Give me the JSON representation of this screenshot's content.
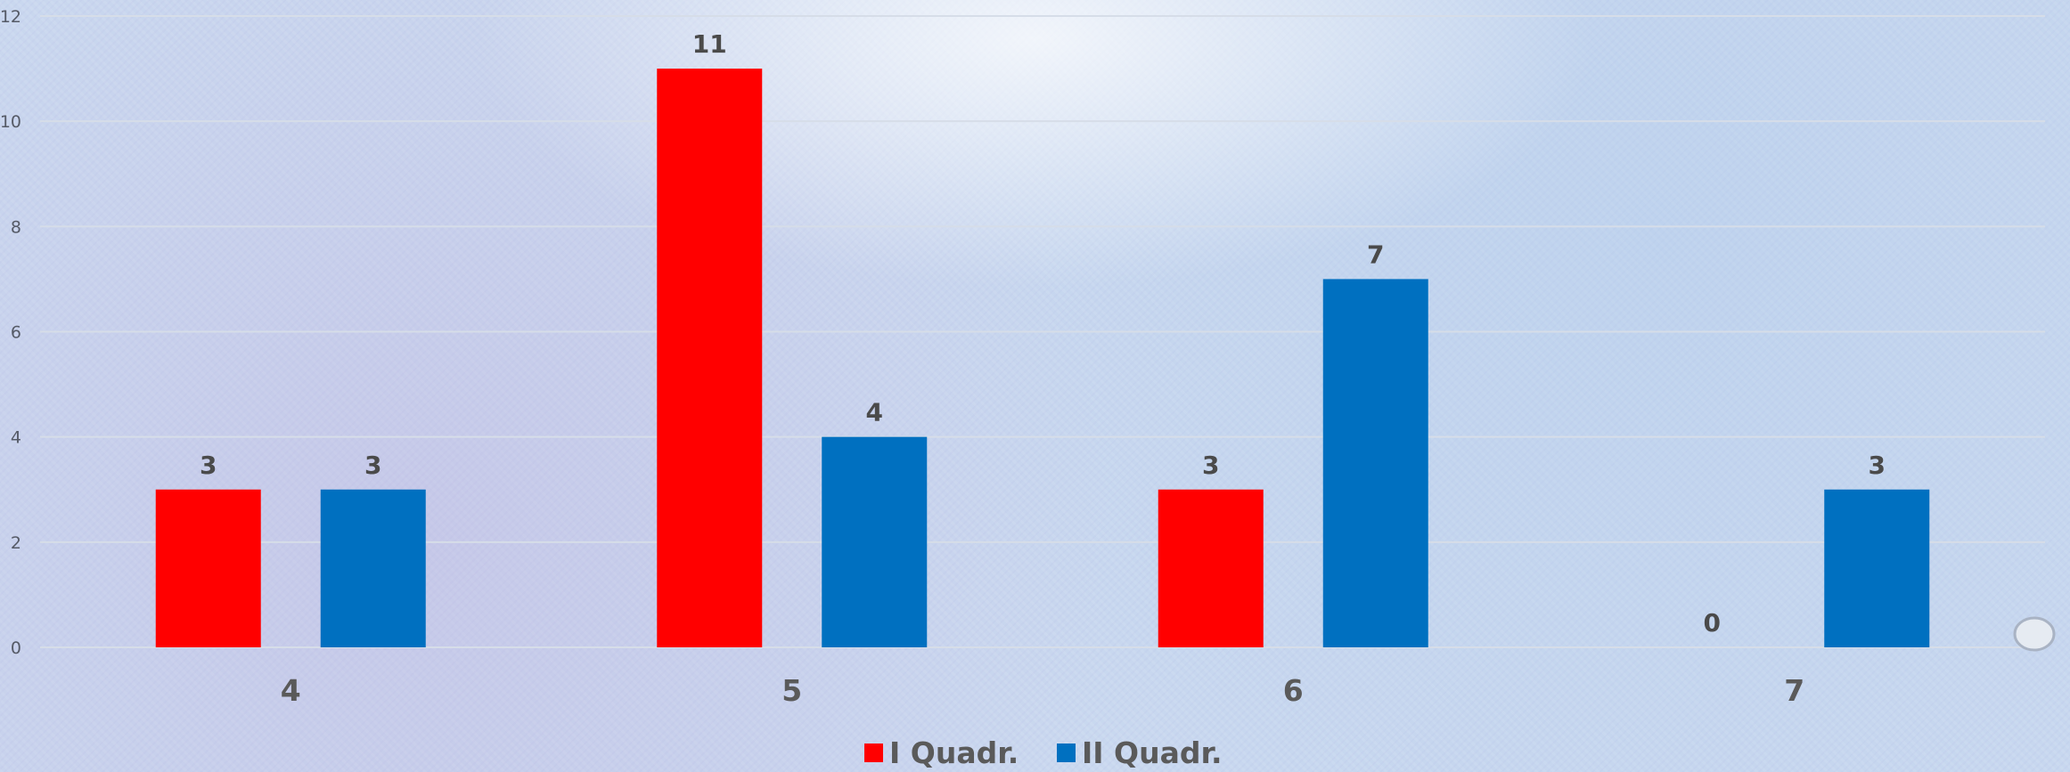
{
  "chart_data": {
    "type": "bar",
    "categories": [
      "4",
      "5",
      "6",
      "7"
    ],
    "series": [
      {
        "name": "I Quadr.",
        "values": [
          3,
          11,
          3,
          0
        ],
        "color": "#ff0000"
      },
      {
        "name": "II Quadr.",
        "values": [
          3,
          4,
          7,
          3
        ],
        "color": "#0070c0"
      }
    ],
    "ylim": [
      0,
      12
    ],
    "yticks": [
      0,
      2,
      4,
      6,
      8,
      10,
      12
    ],
    "grid": true,
    "legend": "bottom",
    "title": "",
    "xlabel": "",
    "ylabel": ""
  }
}
